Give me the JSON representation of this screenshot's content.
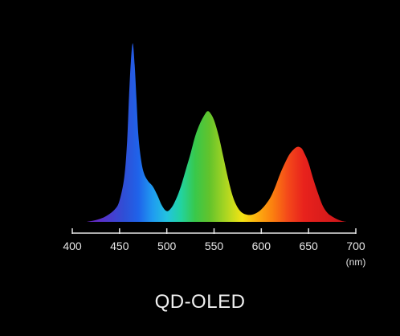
{
  "chart_data": {
    "type": "area",
    "caption": "QD-OLED",
    "x_unit": "(nm)",
    "xlim": [
      400,
      700
    ],
    "x_ticks": [
      400,
      450,
      500,
      550,
      600,
      650,
      700
    ],
    "grid": false,
    "legend": "none",
    "spectrum": {
      "x": [
        415,
        425,
        435,
        445,
        450,
        455,
        458,
        460,
        462,
        464,
        466,
        468,
        470,
        473,
        476,
        480,
        485,
        490,
        495,
        500,
        505,
        510,
        515,
        520,
        525,
        530,
        535,
        540,
        543,
        546,
        550,
        555,
        560,
        565,
        570,
        575,
        580,
        585,
        590,
        595,
        600,
        605,
        610,
        615,
        620,
        625,
        630,
        635,
        638,
        640,
        643,
        646,
        650,
        655,
        660,
        665,
        670,
        675,
        680,
        685,
        690
      ],
      "y": [
        0.0,
        0.01,
        0.03,
        0.07,
        0.12,
        0.25,
        0.45,
        0.7,
        0.9,
        1.0,
        0.88,
        0.68,
        0.48,
        0.34,
        0.27,
        0.23,
        0.2,
        0.15,
        0.09,
        0.06,
        0.08,
        0.13,
        0.2,
        0.29,
        0.38,
        0.48,
        0.55,
        0.6,
        0.62,
        0.61,
        0.57,
        0.48,
        0.36,
        0.24,
        0.14,
        0.08,
        0.05,
        0.04,
        0.04,
        0.05,
        0.07,
        0.1,
        0.14,
        0.2,
        0.27,
        0.33,
        0.38,
        0.41,
        0.42,
        0.42,
        0.41,
        0.38,
        0.33,
        0.24,
        0.16,
        0.09,
        0.05,
        0.03,
        0.015,
        0.005,
        0.0
      ]
    },
    "peaks": [
      {
        "color": "blue",
        "wavelength_nm": 463,
        "relative": 1.0
      },
      {
        "color": "green",
        "wavelength_nm": 543,
        "relative": 0.62
      },
      {
        "color": "red",
        "wavelength_nm": 639,
        "relative": 0.42
      }
    ],
    "colors": {
      "background": "#000000",
      "axis": "#e6e6e6"
    }
  }
}
